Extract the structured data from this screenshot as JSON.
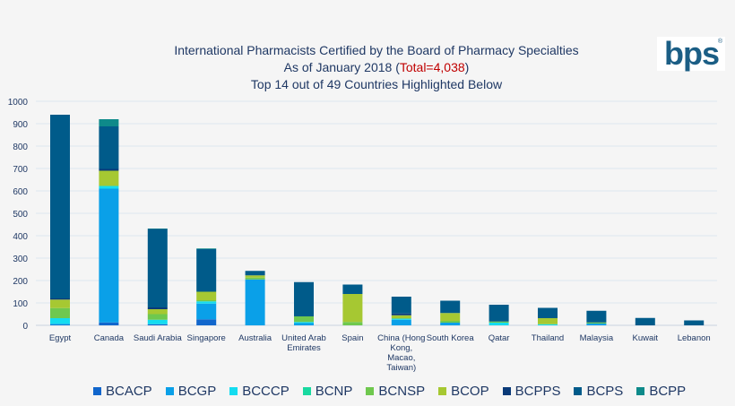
{
  "chart_data": {
    "type": "bar",
    "stacked": true,
    "title": [
      "International Pharmacists Certified by the Board of Pharmacy Specialties",
      "As of January 2018 (",
      "Total=4,038",
      ")",
      "Top 14 out of 49 Countries Highlighted Below"
    ],
    "categories": [
      "Egypt",
      "Canada",
      "Saudi Arabia",
      "Singapore",
      "Australia",
      "United Arab Emirates",
      "Spain",
      "China (Hong Kong, Macao, Taiwan)",
      "South Korea",
      "Qatar",
      "Thailand",
      "Malaysia",
      "Kuwait",
      "Lebanon"
    ],
    "category_lines": [
      [
        "Egypt"
      ],
      [
        "Canada"
      ],
      [
        "Saudi Arabia"
      ],
      [
        "Singapore"
      ],
      [
        "Australia"
      ],
      [
        "United Arab",
        "Emirates"
      ],
      [
        "Spain"
      ],
      [
        "China (Hong",
        "Kong,",
        "Macao,",
        "Taiwan)"
      ],
      [
        "South Korea"
      ],
      [
        "Qatar"
      ],
      [
        "Thailand"
      ],
      [
        "Malaysia"
      ],
      [
        "Kuwait"
      ],
      [
        "Lebanon"
      ]
    ],
    "ylim": [
      0,
      1000
    ],
    "yticks": [
      0,
      100,
      200,
      300,
      400,
      500,
      600,
      700,
      800,
      900,
      1000
    ],
    "grid": true,
    "legend_position": "bottom",
    "series": [
      {
        "name": "BCACP",
        "color": "#1166cc",
        "values": [
          2,
          13,
          5,
          27,
          0,
          0,
          0,
          0,
          0,
          0,
          0,
          0,
          0,
          0
        ]
      },
      {
        "name": "BCGP",
        "color": "#0aa0e8",
        "values": [
          5,
          597,
          0,
          70,
          205,
          10,
          0,
          25,
          12,
          0,
          0,
          8,
          0,
          0
        ]
      },
      {
        "name": "BCCCP",
        "color": "#14dcf0",
        "values": [
          25,
          12,
          20,
          10,
          0,
          5,
          0,
          5,
          0,
          12,
          5,
          0,
          0,
          0
        ]
      },
      {
        "name": "BCNP",
        "color": "#19d9a0",
        "values": [
          0,
          0,
          0,
          0,
          0,
          0,
          0,
          0,
          0,
          0,
          0,
          0,
          0,
          0
        ]
      },
      {
        "name": "BCNSP",
        "color": "#6fc84e",
        "values": [
          45,
          0,
          25,
          5,
          8,
          25,
          15,
          0,
          8,
          5,
          0,
          5,
          0,
          0
        ]
      },
      {
        "name": "BCOP",
        "color": "#a6c832",
        "values": [
          38,
          68,
          22,
          38,
          10,
          0,
          125,
          15,
          35,
          0,
          27,
          0,
          0,
          0
        ]
      },
      {
        "name": "BCPPS",
        "color": "#0a3a78",
        "values": [
          5,
          8,
          8,
          0,
          0,
          0,
          0,
          8,
          0,
          0,
          0,
          0,
          0,
          0
        ]
      },
      {
        "name": "BCPS",
        "color": "#005b8a",
        "values": [
          820,
          190,
          350,
          190,
          20,
          153,
          42,
          75,
          55,
          75,
          46,
          52,
          33,
          22
        ]
      },
      {
        "name": "BCPP",
        "color": "#0e8a8a",
        "values": [
          0,
          32,
          2,
          3,
          0,
          0,
          0,
          0,
          0,
          0,
          0,
          0,
          0,
          0
        ]
      }
    ]
  },
  "logo": {
    "text": "bps",
    "mark": "®"
  }
}
